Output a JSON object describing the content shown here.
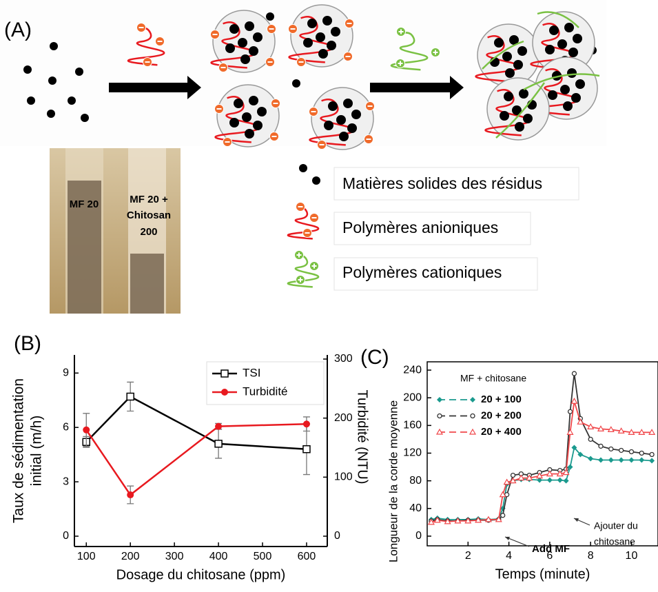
{
  "figure": {
    "panel_a": "(A)",
    "photo_labels": {
      "left": "MF 20",
      "right": [
        "MF 20 +",
        "Chitosan",
        "200"
      ]
    },
    "legend": [
      "Matières solides des résidus",
      "Polymères anioniques",
      "Polymères cationiques"
    ]
  },
  "chart_data": [
    {
      "type": "line",
      "panel_label": "(B)",
      "xlabel": "Dosage du chitosane (ppm)",
      "ylabel": [
        "Taux de sédimentation",
        "initial (m/h)"
      ],
      "y2label": "Turbidité (NTU)",
      "x": [
        100,
        200,
        400,
        600
      ],
      "xlim": [
        73,
        647
      ],
      "xticks": [
        100,
        200,
        300,
        400,
        500,
        600
      ],
      "ylim": [
        -0.57,
        10
      ],
      "yticks": [
        0,
        3,
        6,
        9
      ],
      "y2lim": [
        -17.5,
        307
      ],
      "y2ticks": [
        0,
        100,
        200,
        300
      ],
      "legend": "upper right",
      "series": [
        {
          "name": "TSI",
          "color": "#000000",
          "marker": "square",
          "values": [
            5.2,
            7.7,
            5.1,
            4.8
          ],
          "errors": [
            0.3,
            0.8,
            0.8,
            1.4
          ]
        },
        {
          "name": "Turbidité",
          "color": "#e8191f",
          "marker": "circle",
          "axis": "y2",
          "values": [
            180,
            70,
            186,
            190
          ],
          "errors": [
            28,
            15,
            5,
            12
          ]
        }
      ]
    },
    {
      "type": "line",
      "panel_label": "(C)",
      "xlabel": "Temps (minute)",
      "ylabel": [
        "Longueur de la corde moyenne"
      ],
      "legend_title": "MF + chitosane",
      "legend": "upper left",
      "x": [
        0.2,
        0.5,
        1,
        1.5,
        2,
        2.5,
        3,
        3.5,
        3.7,
        3.9,
        4.2,
        4.6,
        5,
        5.5,
        6,
        6.5,
        6.8,
        7,
        7.2,
        7.5,
        8,
        8.5,
        9,
        9.5,
        10,
        10.5,
        11
      ],
      "xlim": [
        0,
        11.3
      ],
      "xticks": [
        2,
        4,
        6,
        8,
        10
      ],
      "ylim": [
        -14,
        252
      ],
      "yticks": [
        0,
        40,
        80,
        120,
        160,
        200,
        240
      ],
      "annotations": [
        [
          "Add MF"
        ],
        [
          "Ajouter du",
          "chitosane"
        ]
      ],
      "series": [
        {
          "name": "20 + 100",
          "color": "#1a9a8e",
          "marker": "diamond",
          "values": [
            24,
            26,
            24,
            24,
            24,
            25,
            24,
            25,
            40,
            75,
            80,
            82,
            82,
            81,
            81,
            81,
            80,
            100,
            128,
            118,
            112,
            110,
            110,
            110,
            110,
            110,
            109
          ]
        },
        {
          "name": "20 + 200",
          "color": "#333333",
          "marker": "ring",
          "values": [
            22,
            24,
            22,
            22,
            23,
            23,
            23,
            24,
            30,
            60,
            88,
            90,
            88,
            92,
            96,
            95,
            97,
            180,
            235,
            170,
            140,
            130,
            126,
            124,
            122,
            120,
            118
          ]
        },
        {
          "name": "20 + 400",
          "color": "#f0474a",
          "marker": "triangle",
          "values": [
            20,
            23,
            21,
            22,
            22,
            23,
            24,
            24,
            60,
            78,
            80,
            84,
            84,
            87,
            90,
            90,
            92,
            150,
            195,
            165,
            158,
            155,
            154,
            152,
            150,
            150,
            150
          ]
        }
      ]
    }
  ]
}
